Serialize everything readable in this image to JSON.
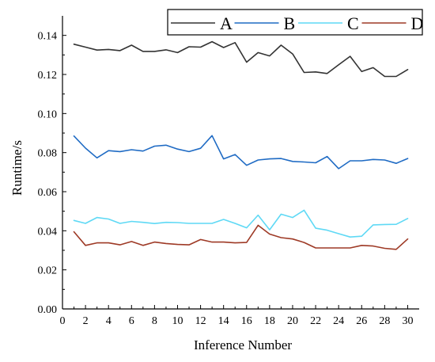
{
  "chart_data": {
    "type": "line",
    "title": "",
    "xlabel": "Inference Number",
    "ylabel": "Runtime/s",
    "xlim": [
      0,
      31
    ],
    "ylim": [
      0,
      0.15
    ],
    "xticks": [
      0,
      2,
      4,
      6,
      8,
      10,
      12,
      14,
      16,
      18,
      20,
      22,
      24,
      26,
      28,
      30
    ],
    "xtick_labels": [
      "0",
      "2",
      "4",
      "6",
      "8",
      "10",
      "12",
      "14",
      "16",
      "18",
      "20",
      "22",
      "24",
      "26",
      "28",
      "30"
    ],
    "yticks": [
      0.0,
      0.02,
      0.04,
      0.06,
      0.08,
      0.1,
      0.12,
      0.14
    ],
    "ytick_labels": [
      "0.00",
      "0.02",
      "0.04",
      "0.06",
      "0.08",
      "0.10",
      "0.12",
      "0.14"
    ],
    "grid": false,
    "legend": {
      "position": "top-right",
      "orientation": "horizontal",
      "framed": true
    },
    "x": [
      1,
      2,
      3,
      4,
      5,
      6,
      7,
      8,
      9,
      10,
      11,
      12,
      13,
      14,
      15,
      16,
      17,
      18,
      19,
      20,
      21,
      22,
      23,
      24,
      25,
      26,
      27,
      28,
      29,
      30
    ],
    "series": [
      {
        "name": "A",
        "color": "#333333",
        "values": [
          0.1355,
          0.134,
          0.1325,
          0.1328,
          0.1322,
          0.135,
          0.1318,
          0.1318,
          0.1326,
          0.1312,
          0.1342,
          0.134,
          0.1368,
          0.1338,
          0.1363,
          0.1263,
          0.1312,
          0.1295,
          0.135,
          0.1305,
          0.121,
          0.1213,
          0.1205,
          0.125,
          0.1293,
          0.1215,
          0.1235,
          0.119,
          0.119,
          0.1225
        ]
      },
      {
        "name": "B",
        "color": "#1f6bc4",
        "values": [
          0.0885,
          0.0823,
          0.0773,
          0.081,
          0.0805,
          0.0815,
          0.0808,
          0.0833,
          0.0838,
          0.0818,
          0.0805,
          0.0822,
          0.0887,
          0.0768,
          0.079,
          0.0735,
          0.0762,
          0.0768,
          0.077,
          0.0755,
          0.0752,
          0.0748,
          0.078,
          0.0718,
          0.0758,
          0.0758,
          0.0765,
          0.0762,
          0.0745,
          0.077
        ]
      },
      {
        "name": "C",
        "color": "#5fd9f5",
        "values": [
          0.0453,
          0.0438,
          0.0468,
          0.046,
          0.0438,
          0.0448,
          0.0443,
          0.0437,
          0.0443,
          0.0442,
          0.0438,
          0.0438,
          0.0438,
          0.0458,
          0.0438,
          0.0415,
          0.048,
          0.0405,
          0.0485,
          0.0468,
          0.0505,
          0.0413,
          0.0403,
          0.0385,
          0.0368,
          0.0372,
          0.043,
          0.0432,
          0.0433,
          0.0463
        ]
      },
      {
        "name": "D",
        "color": "#9e3a26",
        "values": [
          0.0395,
          0.0325,
          0.0338,
          0.0338,
          0.0328,
          0.0345,
          0.0325,
          0.0342,
          0.0335,
          0.033,
          0.0328,
          0.0355,
          0.0342,
          0.0342,
          0.0338,
          0.034,
          0.0428,
          0.0383,
          0.0365,
          0.0358,
          0.034,
          0.0312,
          0.0312,
          0.0312,
          0.0312,
          0.0325,
          0.0322,
          0.031,
          0.0305,
          0.0358
        ]
      }
    ]
  }
}
